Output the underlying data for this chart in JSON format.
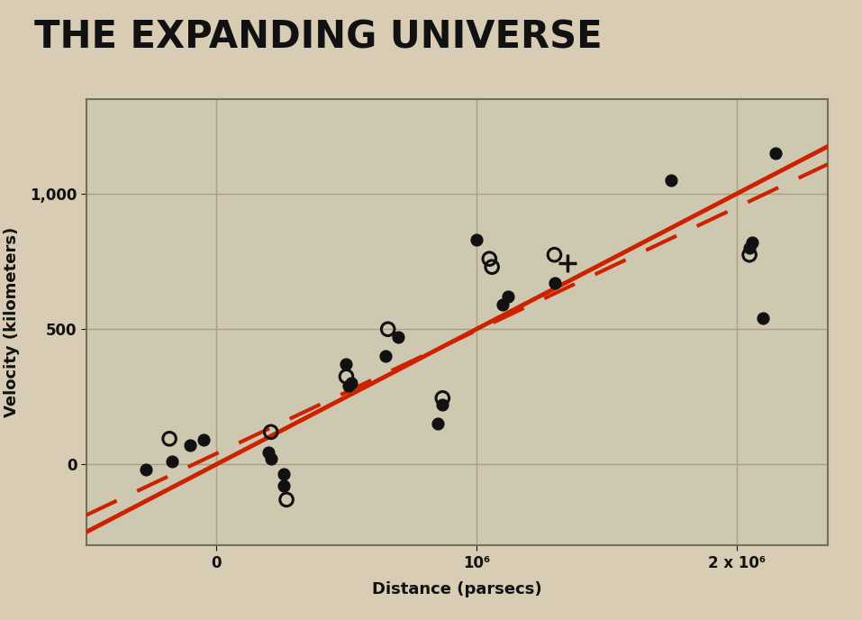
{
  "title": "THE EXPANDING UNIVERSE",
  "xlabel": "Distance (parsecs)",
  "ylabel": "Velocity (kilometers)",
  "bg_color": "#d8cdb4",
  "plot_bg_color": "#cfc8b0",
  "grid_color": "#a8a080",
  "solid_dots": [
    [
      -270000,
      -20
    ],
    [
      -170000,
      10
    ],
    [
      -100000,
      70
    ],
    [
      -50000,
      90
    ],
    [
      200000,
      45
    ],
    [
      210000,
      20
    ],
    [
      260000,
      -35
    ],
    [
      260000,
      -80
    ],
    [
      500000,
      370
    ],
    [
      510000,
      290
    ],
    [
      520000,
      300
    ],
    [
      650000,
      400
    ],
    [
      700000,
      470
    ],
    [
      850000,
      150
    ],
    [
      870000,
      220
    ],
    [
      1000000,
      830
    ],
    [
      1100000,
      590
    ],
    [
      1120000,
      620
    ],
    [
      1300000,
      670
    ],
    [
      1750000,
      1050
    ],
    [
      2050000,
      800
    ],
    [
      2060000,
      820
    ],
    [
      2150000,
      1150
    ],
    [
      2100000,
      540
    ]
  ],
  "open_circles": [
    [
      -180000,
      95
    ],
    [
      210000,
      120
    ],
    [
      270000,
      -130
    ],
    [
      500000,
      325
    ],
    [
      660000,
      500
    ],
    [
      870000,
      245
    ],
    [
      1050000,
      760
    ],
    [
      1060000,
      730
    ],
    [
      1300000,
      775
    ],
    [
      2050000,
      775
    ]
  ],
  "plus_sign": [
    1350000,
    745
  ],
  "solid_line_slope": 0.0005,
  "solid_line_intercept": 0,
  "dashed_line_slope": 0.000455,
  "dashed_line_intercept": 40,
  "xlim": [
    -500000,
    2350000
  ],
  "ylim": [
    -300,
    1350
  ],
  "xticks": [
    0,
    1000000,
    2000000
  ],
  "yticks": [
    0,
    500,
    1000
  ],
  "xtick_labels": [
    "0",
    "10⁶",
    "2 x 10⁶"
  ],
  "ytick_labels": [
    "0",
    "500",
    "1,000"
  ],
  "line_color": "#cc2200",
  "dot_color": "#111111",
  "title_fontsize": 30,
  "axis_label_fontsize": 13,
  "tick_fontsize": 12
}
